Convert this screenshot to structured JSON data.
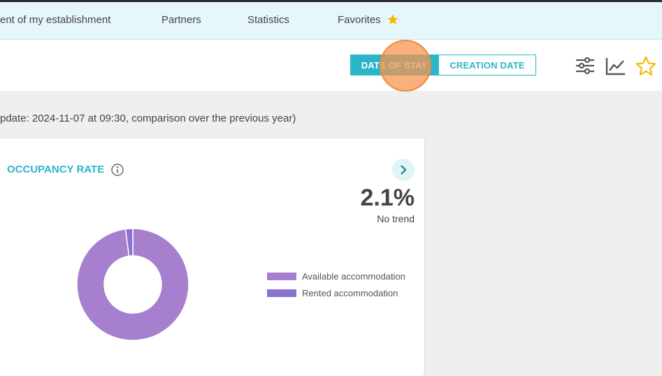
{
  "nav": {
    "items": [
      "ent of my establishment",
      "Partners",
      "Statistics",
      "Favorites"
    ]
  },
  "toolbar": {
    "buttons": [
      "DATE OF STAY",
      "CREATION DATE"
    ]
  },
  "update_note": "pdate: 2024-11-07 at 09:30, comparison over the previous year)",
  "card": {
    "title": "OCCUPANCY RATE",
    "kpi": "2.1%",
    "trend": "No trend"
  },
  "chart_data": {
    "type": "pie",
    "donut": true,
    "categories": [
      "Available accommodation",
      "Rented accommodation"
    ],
    "values": [
      97.9,
      2.1
    ],
    "colors": [
      "#a67fcf",
      "#8a73cf"
    ]
  }
}
